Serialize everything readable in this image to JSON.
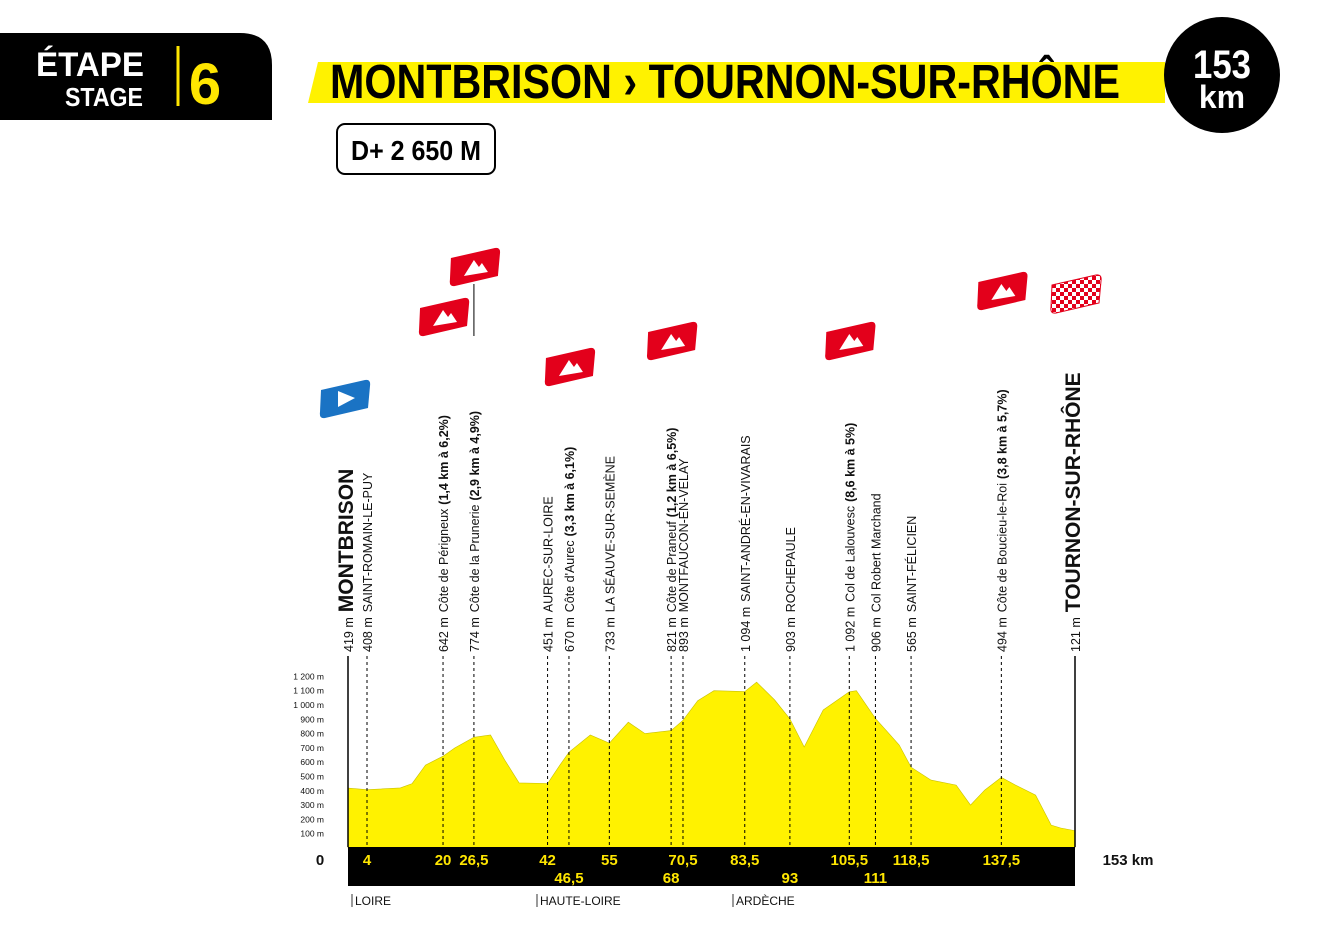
{
  "header": {
    "etape": "ÉTAPE",
    "stage": "STAGE",
    "number": "6",
    "title": "MONTBRISON › TOURNON-SUR-RHÔNE",
    "distance": "153",
    "distance_unit": "km",
    "climbing": "D+ 2 650 M"
  },
  "profile": {
    "type": "area",
    "color": "#fff200",
    "xlim": [
      0,
      153
    ],
    "ylim": [
      0,
      1200
    ],
    "yticks": [
      {
        "value": 100,
        "label": "100 m"
      },
      {
        "value": 200,
        "label": "200 m"
      },
      {
        "value": 300,
        "label": "300 m"
      },
      {
        "value": 400,
        "label": "400 m"
      },
      {
        "value": 500,
        "label": "500 m"
      },
      {
        "value": 600,
        "label": "600 m"
      },
      {
        "value": 700,
        "label": "700 m"
      },
      {
        "value": 800,
        "label": "800 m"
      },
      {
        "value": 900,
        "label": "900 m"
      },
      {
        "value": 1000,
        "label": "1 000 m"
      },
      {
        "value": 1100,
        "label": "1 100 m"
      },
      {
        "value": 1200,
        "label": "1 200 m"
      }
    ],
    "km": [
      0,
      4,
      11,
      13.5,
      16.3,
      20,
      22.5,
      26.5,
      30,
      33,
      36,
      42,
      44.6,
      46.5,
      51,
      55,
      59,
      62.5,
      68,
      70.5,
      73.6,
      77,
      83.5,
      86,
      89.8,
      93,
      96,
      100,
      105.5,
      107,
      111,
      116,
      118.5,
      122.7,
      128,
      131,
      134,
      137.5,
      140.5,
      144.7,
      148,
      150,
      153
    ],
    "altitude": [
      419,
      408,
      420,
      450,
      580,
      642,
      700,
      774,
      790,
      615,
      455,
      451,
      580,
      670,
      790,
      733,
      880,
      800,
      821,
      893,
      1030,
      1100,
      1094,
      1160,
      1035,
      903,
      706,
      965,
      1092,
      1100,
      906,
      720,
      565,
      475,
      440,
      300,
      405,
      494,
      440,
      370,
      160,
      140,
      121
    ]
  },
  "waypoints": [
    {
      "km": 0,
      "altitude": {
        "value": 419,
        "label": "419 m"
      },
      "name": "MONTBRISON"
    },
    {
      "km": 4,
      "altitude": {
        "value": 408,
        "label": "408 m"
      },
      "name": "SAINT-ROMAIN-LE-PUY"
    },
    {
      "km": 20,
      "altitude": {
        "value": 642,
        "label": "642 m"
      },
      "name": "Côte de Périgneux",
      "detail": "(1,4 km à 6,2%)"
    },
    {
      "km": {
        "value": 26.5,
        "label": "26,5"
      },
      "altitude": {
        "value": 774,
        "label": "774 m"
      },
      "name": "Côte de la Prunerie",
      "detail": "(2,9 km à 4,9%)"
    },
    {
      "km": 42,
      "altitude": {
        "value": 451,
        "label": "451 m"
      },
      "name": "AUREC-SUR-LOIRE"
    },
    {
      "km": {
        "value": 46.5,
        "label": "46,5"
      },
      "altitude": {
        "value": 670,
        "label": "670 m"
      },
      "name": "Côte d'Aurec",
      "detail": "(3,3 km à 6,1%)"
    },
    {
      "km": 55,
      "altitude": {
        "value": 733,
        "label": "733 m"
      },
      "name": "LA SÉAUVE-SUR-SEMÈNE"
    },
    {
      "km": 68,
      "altitude": {
        "value": 821,
        "label": "821 m"
      },
      "name": "Côte de Praneuf",
      "detail": "(1,2 km à 6,5%)"
    },
    {
      "km": {
        "value": 70.5,
        "label": "70,5"
      },
      "altitude": {
        "value": 893,
        "label": "893 m"
      },
      "name": "MONTFAUCON-EN-VELAY"
    },
    {
      "km": {
        "value": 83.5,
        "label": "83,5"
      },
      "altitude": {
        "value": 1094,
        "label": "1 094 m"
      },
      "name": "SAINT-ANDRÉ-EN-VIVARAIS"
    },
    {
      "km": 93,
      "altitude": {
        "value": 903,
        "label": "903 m"
      },
      "name": "ROCHEPAULE"
    },
    {
      "km": {
        "value": 105.5,
        "label": "105,5"
      },
      "altitude": {
        "value": 1092,
        "label": "1 092 m"
      },
      "name": "Col de Lalouvesc",
      "detail": "(8,6 km à 5%)"
    },
    {
      "km": 111,
      "altitude": {
        "value": 906,
        "label": "906 m"
      },
      "name": "Col Robert Marchand"
    },
    {
      "km": {
        "value": 118.5,
        "label": "118,5"
      },
      "altitude": {
        "value": 565,
        "label": "565 m"
      },
      "name": "SAINT-FÉLICIEN"
    },
    {
      "km": {
        "value": 137.5,
        "label": "137,5"
      },
      "altitude": {
        "value": 494,
        "label": "494 m"
      },
      "name": "Côte de Boucieu-le-Roi",
      "detail": "(3,8 km à 5,7%)"
    },
    {
      "km": {
        "value": 153,
        "label": "153 km"
      },
      "altitude": {
        "value": 121,
        "label": "121 m"
      },
      "name": "TOURNON-SUR-RHÔNE"
    }
  ],
  "regions": [
    "LOIRE",
    "HAUTE-LOIRE",
    "ARDÈCHE"
  ]
}
